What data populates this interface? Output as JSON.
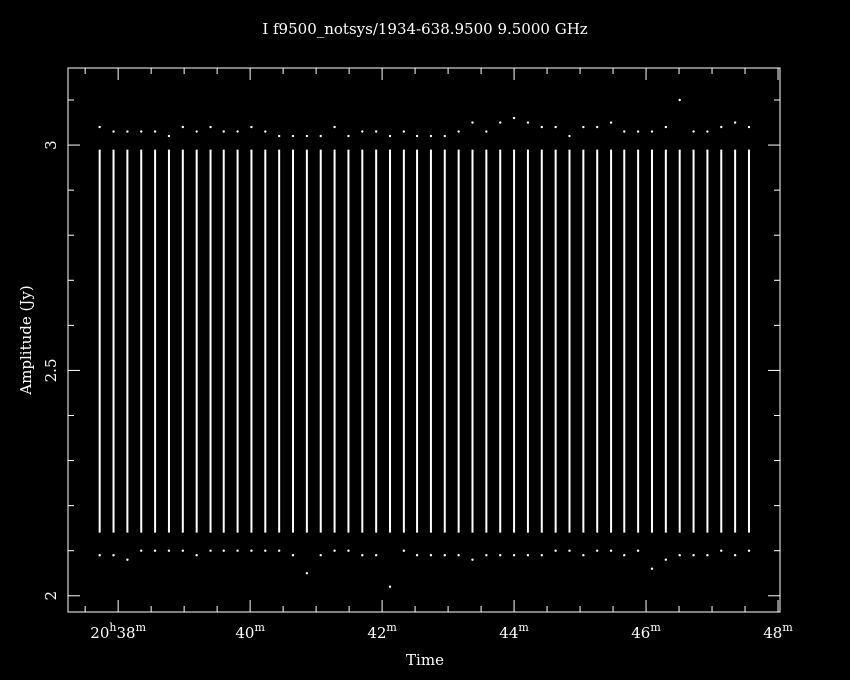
{
  "chart_data": {
    "type": "range",
    "title": "I f9500_notsys/1934-638.9500  9.5000 GHz",
    "xlabel": "Time",
    "ylabel": "Amplitude (Jy)",
    "color": "#ffffff",
    "background": "#000000",
    "xlim": [
      37.24,
      48.03
    ],
    "ylim": [
      1.964,
      3.171
    ],
    "xticks": [
      {
        "value": 38,
        "label": "20h38m"
      },
      {
        "value": 40,
        "label": "40m"
      },
      {
        "value": 42,
        "label": "42m"
      },
      {
        "value": 44,
        "label": "44m"
      },
      {
        "value": 46,
        "label": "46m"
      },
      {
        "value": 48,
        "label": "48m"
      }
    ],
    "xminor": [
      37.5,
      38.5,
      39,
      39.5,
      40.5,
      41,
      41.5,
      42.5,
      43,
      43.5,
      44.5,
      45,
      45.5,
      46.5,
      47,
      47.5
    ],
    "yticks": [
      2,
      2.5,
      3
    ],
    "yminor": [
      2.1,
      2.2,
      2.3,
      2.4,
      2.6,
      2.7,
      2.8,
      2.9,
      3.1
    ],
    "x": [
      37.72,
      37.93,
      38.14,
      38.35,
      38.56,
      38.77,
      38.98,
      39.19,
      39.4,
      39.6,
      39.81,
      40.02,
      40.23,
      40.44,
      40.65,
      40.86,
      41.07,
      41.28,
      41.49,
      41.7,
      41.91,
      42.12,
      42.33,
      42.53,
      42.74,
      42.95,
      43.16,
      43.37,
      43.58,
      43.79,
      44.0,
      44.21,
      44.42,
      44.63,
      44.84,
      45.05,
      45.26,
      45.47,
      45.67,
      45.88,
      46.09,
      46.3,
      46.51,
      46.72,
      46.93,
      47.14,
      47.35,
      47.56
    ],
    "high": [
      2.99,
      2.99,
      2.99,
      2.99,
      2.99,
      2.99,
      2.99,
      2.99,
      2.99,
      2.99,
      2.99,
      2.99,
      2.99,
      2.99,
      2.99,
      2.99,
      2.99,
      2.99,
      2.99,
      2.99,
      2.99,
      2.99,
      2.99,
      2.99,
      2.99,
      2.99,
      2.99,
      2.99,
      2.99,
      2.99,
      2.99,
      2.99,
      2.99,
      2.99,
      2.99,
      2.99,
      2.99,
      2.99,
      2.99,
      2.99,
      2.99,
      2.99,
      2.99,
      2.99,
      2.99,
      2.99,
      2.99,
      2.99
    ],
    "low": [
      2.14,
      2.14,
      2.14,
      2.14,
      2.14,
      2.14,
      2.14,
      2.14,
      2.14,
      2.14,
      2.14,
      2.14,
      2.14,
      2.14,
      2.14,
      2.14,
      2.14,
      2.14,
      2.14,
      2.14,
      2.14,
      2.14,
      2.14,
      2.14,
      2.14,
      2.14,
      2.14,
      2.14,
      2.14,
      2.14,
      2.14,
      2.14,
      2.14,
      2.14,
      2.14,
      2.14,
      2.14,
      2.14,
      2.14,
      2.14,
      2.14,
      2.14,
      2.14,
      2.14,
      2.14,
      2.14,
      2.14,
      2.14
    ],
    "max": [
      3.04,
      3.03,
      3.03,
      3.03,
      3.03,
      3.02,
      3.04,
      3.03,
      3.04,
      3.03,
      3.03,
      3.04,
      3.03,
      3.02,
      3.02,
      3.02,
      3.02,
      3.04,
      3.02,
      3.03,
      3.03,
      3.02,
      3.03,
      3.02,
      3.02,
      3.02,
      3.03,
      3.05,
      3.03,
      3.05,
      3.06,
      3.05,
      3.04,
      3.04,
      3.02,
      3.04,
      3.04,
      3.05,
      3.03,
      3.03,
      3.03,
      3.04,
      3.1,
      3.03,
      3.03,
      3.04,
      3.05,
      3.04
    ],
    "min": [
      2.09,
      2.09,
      2.08,
      2.1,
      2.1,
      2.1,
      2.1,
      2.09,
      2.1,
      2.1,
      2.1,
      2.1,
      2.1,
      2.1,
      2.09,
      2.05,
      2.09,
      2.1,
      2.1,
      2.09,
      2.09,
      2.02,
      2.1,
      2.09,
      2.09,
      2.09,
      2.09,
      2.08,
      2.09,
      2.09,
      2.09,
      2.09,
      2.09,
      2.1,
      2.1,
      2.09,
      2.1,
      2.1,
      2.09,
      2.1,
      2.06,
      2.08,
      2.09,
      2.09,
      2.09,
      2.1,
      2.09,
      2.1
    ]
  }
}
